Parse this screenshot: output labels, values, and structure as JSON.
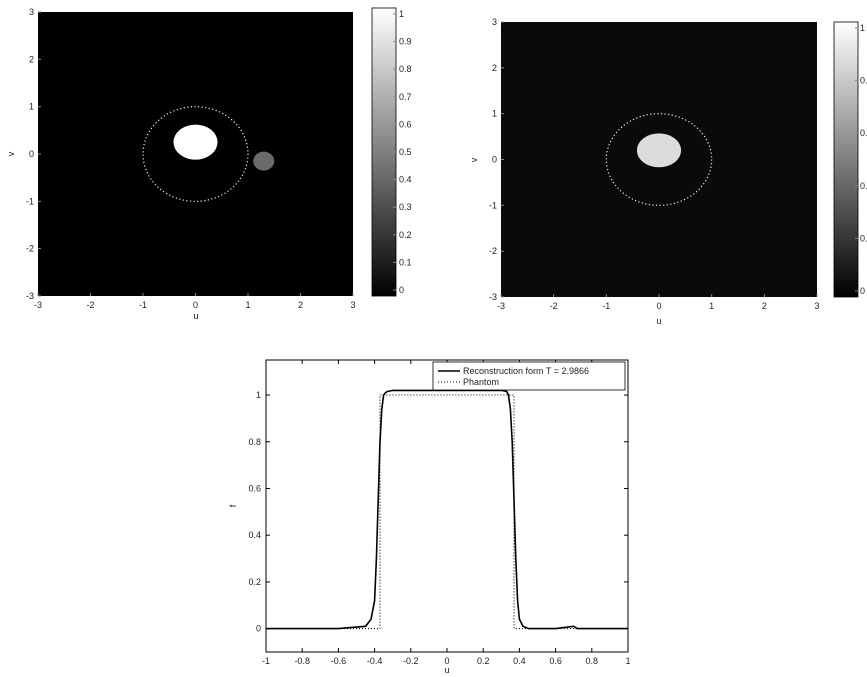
{
  "chart_data": [
    {
      "type": "heatmap",
      "xlabel": "u",
      "ylabel": "v",
      "xlim": [
        -3,
        3
      ],
      "ylim": [
        -3,
        3
      ],
      "x_ticks": [
        "-3",
        "-2",
        "-1",
        "0",
        "1",
        "2",
        "3"
      ],
      "y_ticks": [
        "3",
        "2",
        "1",
        "0",
        "-1",
        "-2",
        "-3"
      ],
      "colorbar": {
        "range": [
          0,
          1
        ],
        "ticks": [
          "1",
          "0.9",
          "0.8",
          "0.7",
          "0.6",
          "0.5",
          "0.4",
          "0.3",
          "0.2",
          "0.1",
          "0"
        ]
      },
      "objects": [
        {
          "shape": "disk",
          "cx": 0,
          "cy": 0.25,
          "rx": 0.42,
          "ry": 0.37,
          "value": 1.0
        },
        {
          "shape": "disk",
          "cx": 1.3,
          "cy": -0.15,
          "rx": 0.2,
          "ry": 0.2,
          "value": 0.42
        }
      ],
      "dotted_circle": {
        "cx": 0,
        "cy": 0,
        "r": 1
      }
    },
    {
      "type": "heatmap",
      "xlabel": "u",
      "ylabel": "v",
      "xlim": [
        -3,
        3
      ],
      "ylim": [
        -3,
        3
      ],
      "x_ticks": [
        "-3",
        "-2",
        "-1",
        "0",
        "1",
        "2",
        "3"
      ],
      "y_ticks": [
        "3",
        "2",
        "1",
        "0",
        "-1",
        "-2",
        "-3"
      ],
      "colorbar": {
        "range": [
          0,
          1.1
        ],
        "ticks": [
          "1",
          "0.",
          "0.",
          "0.",
          "0.",
          "0"
        ]
      },
      "objects": [
        {
          "shape": "disk",
          "cx": 0,
          "cy": 0.2,
          "rx": 0.42,
          "ry": 0.37,
          "value": 0.95
        }
      ],
      "dotted_circle": {
        "cx": 0,
        "cy": 0,
        "r": 1
      }
    },
    {
      "type": "line",
      "xlabel": "u",
      "ylabel": "f",
      "xlim": [
        -1,
        1
      ],
      "ylim": [
        -0.1,
        1.15
      ],
      "x_ticks": [
        "-1",
        "-0.8",
        "-0.6",
        "-0.4",
        "-0.2",
        "0",
        "0.2",
        "0.4",
        "0.6",
        "0.8",
        "1"
      ],
      "y_ticks": [
        "0",
        "0.2",
        "0.4",
        "0.6",
        "0.8",
        "1"
      ],
      "series": [
        {
          "name": "Reconstruction form T = 2.9866",
          "style": "solid",
          "x": [
            -1.0,
            -0.6,
            -0.45,
            -0.42,
            -0.4,
            -0.39,
            -0.38,
            -0.37,
            -0.36,
            -0.35,
            -0.34,
            -0.33,
            -0.3,
            -0.2,
            0.0,
            0.2,
            0.3,
            0.33,
            0.34,
            0.35,
            0.36,
            0.37,
            0.38,
            0.39,
            0.4,
            0.42,
            0.45,
            0.6,
            0.7,
            0.72,
            1.0
          ],
          "y": [
            0.0,
            0.0,
            0.01,
            0.04,
            0.12,
            0.3,
            0.55,
            0.8,
            0.94,
            1.0,
            1.01,
            1.015,
            1.02,
            1.02,
            1.02,
            1.02,
            1.02,
            1.015,
            1.0,
            0.94,
            0.8,
            0.55,
            0.3,
            0.12,
            0.04,
            0.01,
            0.0,
            0.0,
            0.01,
            0.0,
            0.0
          ]
        },
        {
          "name": "Phantom",
          "style": "dotted",
          "x": [
            -1.0,
            -0.37,
            -0.37,
            0.37,
            0.37,
            1.0
          ],
          "y": [
            0.0,
            0.0,
            1.0,
            1.0,
            0.0,
            0.0
          ]
        }
      ],
      "legend": "top-right"
    }
  ]
}
